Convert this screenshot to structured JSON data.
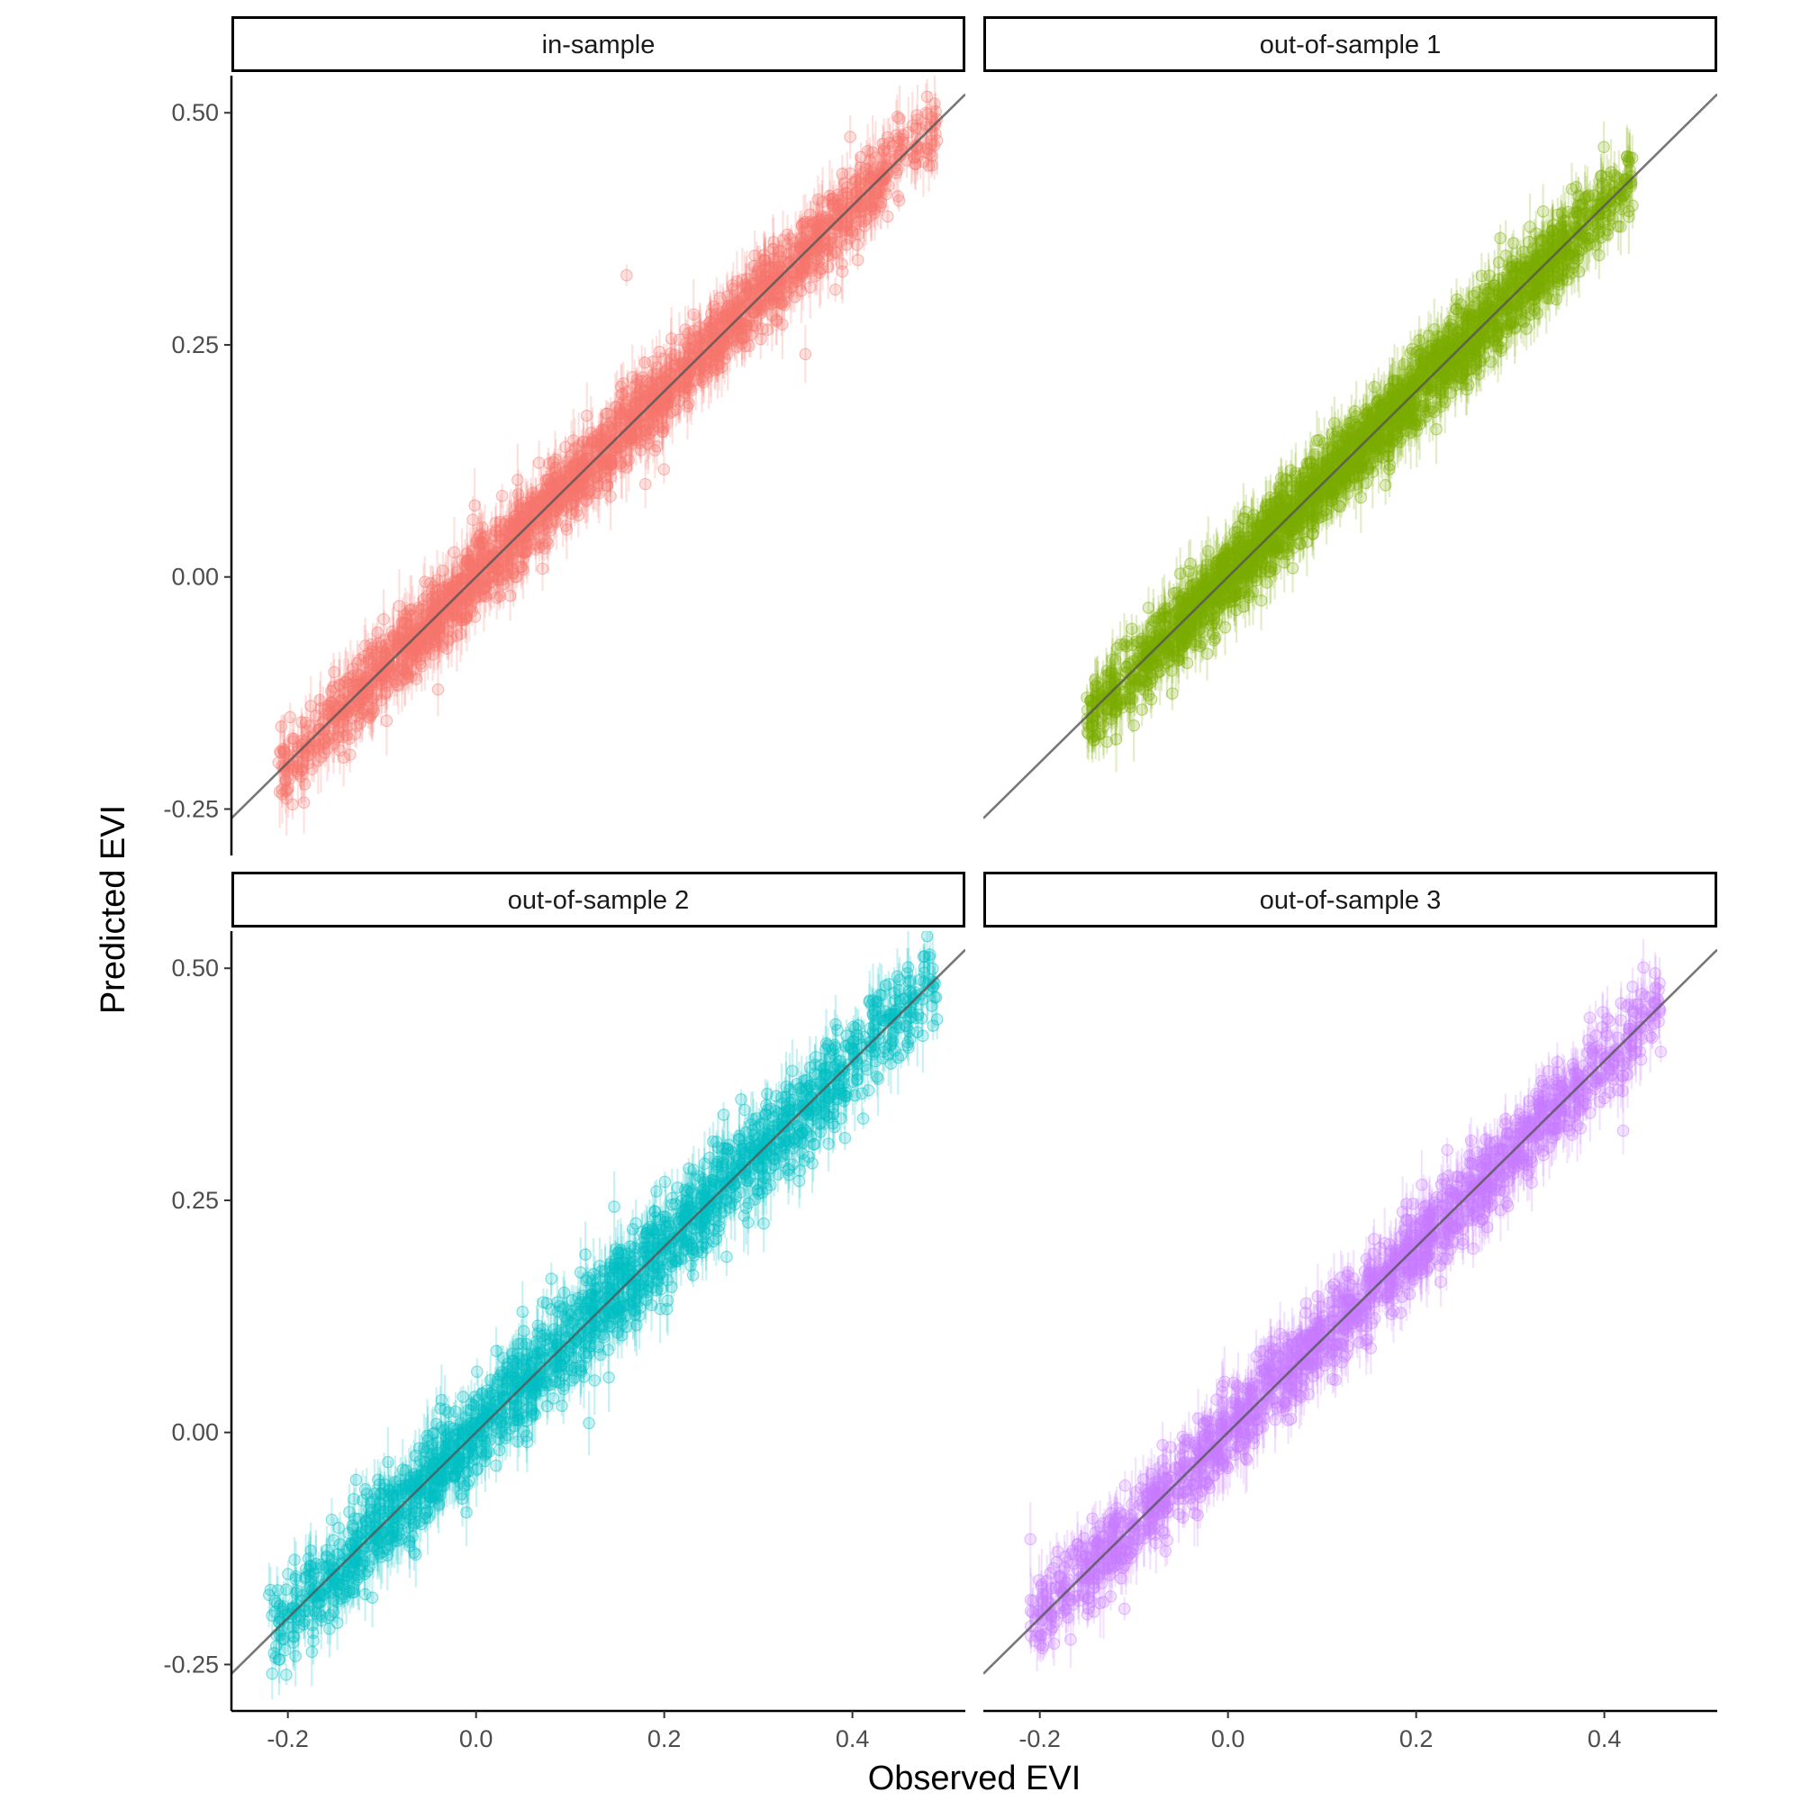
{
  "chart_data": {
    "type": "scatter",
    "xlabel": "Observed EVI",
    "ylabel": "Predicted EVI",
    "xlim": [
      -0.26,
      0.52
    ],
    "ylim": [
      -0.3,
      0.54
    ],
    "x_ticks": [
      -0.2,
      0.0,
      0.2,
      0.4
    ],
    "x_tick_labels": [
      "-0.2",
      "0.0",
      "0.2",
      "0.4"
    ],
    "y_ticks": [
      -0.25,
      0.0,
      0.25,
      0.5
    ],
    "y_tick_labels": [
      "-0.25",
      "0.00",
      "0.25",
      "0.50"
    ],
    "reference_line": "y = x",
    "grid": false,
    "facets": [
      {
        "label": "in-sample",
        "color": "#f8766d",
        "x_range": [
          -0.21,
          0.49
        ],
        "extremes": [
          [
            -0.21,
            -0.2
          ],
          [
            -0.195,
            -0.245
          ],
          [
            0.16,
            0.325
          ],
          [
            0.18,
            0.1
          ],
          [
            0.35,
            0.24
          ],
          [
            0.49,
            0.47
          ],
          [
            0.44,
            0.45
          ]
        ],
        "n_points": 2200,
        "spread": 0.02
      },
      {
        "label": "out-of-sample 1",
        "color": "#7cae00",
        "x_range": [
          -0.15,
          0.43
        ],
        "extremes": [
          [
            -0.15,
            -0.13
          ],
          [
            -0.1,
            -0.16
          ],
          [
            0.43,
            0.4
          ],
          [
            0.37,
            0.42
          ],
          [
            0.36,
            0.32
          ]
        ],
        "n_points": 2400,
        "spread": 0.02
      },
      {
        "label": "out-of-sample 2",
        "color": "#00bfc4",
        "x_range": [
          -0.22,
          0.49
        ],
        "extremes": [
          [
            -0.22,
            -0.175
          ],
          [
            -0.2,
            -0.21
          ],
          [
            0.12,
            0.01
          ],
          [
            0.49,
            0.445
          ],
          [
            0.47,
            0.45
          ]
        ],
        "n_points": 1900,
        "spread": 0.025
      },
      {
        "label": "out-of-sample 3",
        "color": "#c77cff",
        "x_range": [
          -0.21,
          0.46
        ],
        "extremes": [
          [
            -0.21,
            -0.115
          ],
          [
            -0.11,
            -0.19
          ],
          [
            0.43,
            0.48
          ],
          [
            0.42,
            0.325
          ],
          [
            0.46,
            0.41
          ],
          [
            0.4,
            0.36
          ]
        ],
        "n_points": 1700,
        "spread": 0.022
      }
    ]
  }
}
